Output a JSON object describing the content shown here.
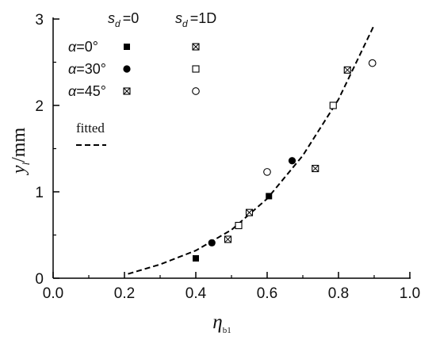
{
  "chart_data": {
    "type": "scatter",
    "xlabel": "η",
    "xlabel_sub": "b1",
    "ylabel": "y",
    "ylabel_sub": "l",
    "ylabel_unit": "/mm",
    "xlim": [
      0.0,
      1.0
    ],
    "ylim": [
      0,
      3
    ],
    "x_ticks": [
      "0.0",
      "0.2",
      "0.4",
      "0.6",
      "0.8",
      "1.0"
    ],
    "y_ticks": [
      "0",
      "1",
      "2",
      "3"
    ],
    "grid": false,
    "legend": {
      "placement": "top-left",
      "col_headers": [
        {
          "sym": "s",
          "sub": "d",
          "rest": "=0"
        },
        {
          "sym": "s",
          "sub": "d",
          "rest": "=1D"
        }
      ],
      "rows": [
        {
          "greek": "α",
          "rest": "=0°",
          "markers": [
            "square-filled",
            "square-crossed"
          ]
        },
        {
          "greek": "α",
          "rest": "=30°",
          "markers": [
            "circle-filled",
            "square-open"
          ]
        },
        {
          "greek": "α",
          "rest": "=45°",
          "markers": [
            "square-crossed",
            "circle-open"
          ]
        }
      ],
      "fitted_label": "fitted"
    },
    "series": [
      {
        "marker": "square-filled",
        "points": [
          [
            0.4,
            0.23
          ],
          [
            0.605,
            0.95
          ]
        ]
      },
      {
        "marker": "circle-filled",
        "points": [
          [
            0.445,
            0.41
          ],
          [
            0.67,
            1.36
          ]
        ]
      },
      {
        "marker": "square-crossed",
        "points": [
          [
            0.49,
            0.45
          ],
          [
            0.55,
            0.76
          ],
          [
            0.735,
            1.27
          ],
          [
            0.825,
            2.41
          ]
        ]
      },
      {
        "marker": "square-open",
        "points": [
          [
            0.52,
            0.61
          ],
          [
            0.785,
            2.0
          ]
        ]
      },
      {
        "marker": "circle-open",
        "points": [
          [
            0.6,
            1.23
          ],
          [
            0.895,
            2.49
          ]
        ]
      },
      {
        "marker": "line-dashed",
        "points": [
          [
            0.21,
            0.05
          ],
          [
            0.3,
            0.16
          ],
          [
            0.4,
            0.32
          ],
          [
            0.5,
            0.56
          ],
          [
            0.6,
            0.92
          ],
          [
            0.7,
            1.42
          ],
          [
            0.8,
            2.07
          ],
          [
            0.9,
            2.93
          ]
        ]
      }
    ]
  }
}
